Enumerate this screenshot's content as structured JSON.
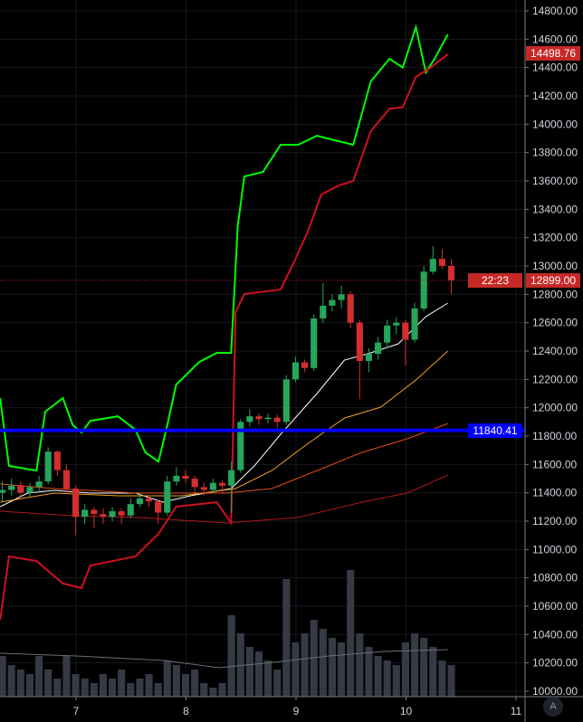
{
  "chart_data": {
    "type": "candlestick",
    "x_axis": {
      "ticks": [
        7,
        8,
        9,
        10,
        11
      ],
      "range": [
        6.31,
        11.05
      ]
    },
    "y_axis": {
      "ticks": [
        10000,
        10200,
        10400,
        10600,
        10800,
        11000,
        11200,
        11400,
        11600,
        11800,
        12000,
        12200,
        12400,
        12600,
        12800,
        13000,
        13200,
        13400,
        13600,
        13800,
        14000,
        14200,
        14400,
        14600,
        14800
      ],
      "range": [
        9950,
        14880
      ],
      "tick_labels": [
        "10000.00",
        "10200.00",
        "10400.00",
        "10600.00",
        "10800.00",
        "11000.00",
        "11200.00",
        "11400.00",
        "11600.00",
        "11800.00",
        "12000.00",
        "12200.00",
        "12400.00",
        "12600.00",
        "12800.00",
        "13000.00",
        "13200.00",
        "13400.00",
        "13600.00",
        "13800.00",
        "14000.00",
        "14200.00",
        "14400.00",
        "14600.00",
        "14800.00"
      ]
    },
    "grid": true,
    "candle_start": 6.33,
    "candle_step_days": 0.0833,
    "candles_ohlc": [
      [
        11400,
        11480,
        11340,
        11420
      ],
      [
        11420,
        11500,
        11380,
        11450
      ],
      [
        11450,
        11480,
        11360,
        11400
      ],
      [
        11400,
        11470,
        11370,
        11440
      ],
      [
        11440,
        11520,
        11400,
        11480
      ],
      [
        11480,
        11720,
        11460,
        11690
      ],
      [
        11690,
        11700,
        11520,
        11560
      ],
      [
        11560,
        11600,
        11400,
        11430
      ],
      [
        11430,
        11450,
        11100,
        11230
      ],
      [
        11230,
        11320,
        11180,
        11280
      ],
      [
        11280,
        11300,
        11150,
        11250
      ],
      [
        11250,
        11290,
        11180,
        11230
      ],
      [
        11230,
        11300,
        11200,
        11270
      ],
      [
        11270,
        11290,
        11180,
        11240
      ],
      [
        11240,
        11360,
        11220,
        11320
      ],
      [
        11320,
        11400,
        11300,
        11360
      ],
      [
        11360,
        11380,
        11300,
        11340
      ],
      [
        11340,
        11350,
        11180,
        11260
      ],
      [
        11260,
        11520,
        11240,
        11480
      ],
      [
        11480,
        11580,
        11450,
        11520
      ],
      [
        11520,
        11560,
        11470,
        11500
      ],
      [
        11500,
        11520,
        11400,
        11440
      ],
      [
        11440,
        11470,
        11380,
        11420
      ],
      [
        11420,
        11500,
        11400,
        11470
      ],
      [
        11470,
        11490,
        11400,
        11450
      ],
      [
        11450,
        11620,
        11260,
        11560
      ],
      [
        11560,
        11920,
        11540,
        11900
      ],
      [
        11900,
        11990,
        11870,
        11940
      ],
      [
        11940,
        11960,
        11880,
        11920
      ],
      [
        11920,
        11960,
        11890,
        11930
      ],
      [
        11930,
        11950,
        11860,
        11900
      ],
      [
        11900,
        12230,
        11880,
        12200
      ],
      [
        12200,
        12360,
        12180,
        12320
      ],
      [
        12320,
        12340,
        12250,
        12280
      ],
      [
        12280,
        12660,
        12260,
        12630
      ],
      [
        12630,
        12880,
        12600,
        12720
      ],
      [
        12720,
        12800,
        12680,
        12760
      ],
      [
        12760,
        12860,
        12700,
        12800
      ],
      [
        12800,
        12820,
        12560,
        12600
      ],
      [
        12600,
        12620,
        12060,
        12330
      ],
      [
        12330,
        12420,
        12250,
        12380
      ],
      [
        12380,
        12500,
        12340,
        12460
      ],
      [
        12460,
        12620,
        12420,
        12580
      ],
      [
        12580,
        12640,
        12520,
        12600
      ],
      [
        12600,
        12620,
        12300,
        12480
      ],
      [
        12480,
        12740,
        12460,
        12700
      ],
      [
        12700,
        13000,
        12680,
        12960
      ],
      [
        12960,
        13140,
        12940,
        13050
      ],
      [
        13050,
        13120,
        12980,
        13000
      ],
      [
        13000,
        13050,
        12800,
        12899
      ]
    ],
    "volume_relative": [
      45,
      35,
      30,
      25,
      45,
      30,
      20,
      45,
      25,
      20,
      15,
      25,
      20,
      30,
      15,
      20,
      25,
      15,
      40,
      35,
      25,
      30,
      15,
      10,
      15,
      90,
      70,
      55,
      50,
      40,
      30,
      130,
      60,
      70,
      85,
      75,
      65,
      60,
      140,
      70,
      55,
      45,
      40,
      35,
      60,
      70,
      65,
      55,
      40,
      35
    ],
    "volume_ma_relative": [
      [
        6.31,
        48
      ],
      [
        7.0,
        45
      ],
      [
        7.8,
        40
      ],
      [
        8.3,
        32
      ],
      [
        8.8,
        38
      ],
      [
        9.3,
        45
      ],
      [
        9.8,
        50
      ],
      [
        10.38,
        52
      ]
    ],
    "series": [
      {
        "color": "#00ff00",
        "points": [
          [
            6.31,
            12068
          ],
          [
            6.39,
            11590
          ],
          [
            6.64,
            11557
          ],
          [
            6.72,
            11972
          ],
          [
            6.88,
            12068
          ],
          [
            6.97,
            11877
          ],
          [
            7.05,
            11825
          ],
          [
            7.13,
            11908
          ],
          [
            7.38,
            11940
          ],
          [
            7.54,
            11845
          ],
          [
            7.63,
            11685
          ],
          [
            7.75,
            11620
          ],
          [
            7.83,
            11877
          ],
          [
            7.91,
            12163
          ],
          [
            8.12,
            12323
          ],
          [
            8.28,
            12387
          ],
          [
            8.41,
            12387
          ],
          [
            8.47,
            13280
          ],
          [
            8.53,
            13632
          ],
          [
            8.7,
            13664
          ],
          [
            8.86,
            13855
          ],
          [
            9.02,
            13855
          ],
          [
            9.19,
            13919
          ],
          [
            9.35,
            13887
          ],
          [
            9.52,
            13855
          ],
          [
            9.68,
            14302
          ],
          [
            9.85,
            14462
          ],
          [
            9.97,
            14400
          ],
          [
            10.09,
            14685
          ],
          [
            10.18,
            14366
          ],
          [
            10.26,
            14462
          ],
          [
            10.38,
            14634
          ]
        ]
      },
      {
        "color": "#d01020",
        "points": [
          [
            6.31,
            10504
          ],
          [
            6.39,
            10951
          ],
          [
            6.64,
            10919
          ],
          [
            6.88,
            10760
          ],
          [
            7.05,
            10728
          ],
          [
            7.13,
            10887
          ],
          [
            7.54,
            10951
          ],
          [
            7.75,
            11111
          ],
          [
            7.91,
            11302
          ],
          [
            8.28,
            11334
          ],
          [
            8.41,
            11187
          ],
          [
            8.45,
            12674
          ],
          [
            8.53,
            12802
          ],
          [
            8.86,
            12834
          ],
          [
            8.98,
            13025
          ],
          [
            9.11,
            13249
          ],
          [
            9.23,
            13504
          ],
          [
            9.39,
            13568
          ],
          [
            9.52,
            13600
          ],
          [
            9.68,
            13951
          ],
          [
            9.85,
            14110
          ],
          [
            9.97,
            14120
          ],
          [
            10.09,
            14334
          ],
          [
            10.22,
            14398
          ],
          [
            10.38,
            14494
          ]
        ]
      },
      {
        "color": "#ffffff",
        "points": [
          [
            6.31,
            11302
          ],
          [
            6.56,
            11398
          ],
          [
            6.8,
            11417
          ],
          [
            7.13,
            11398
          ],
          [
            7.54,
            11398
          ],
          [
            7.79,
            11334
          ],
          [
            8.04,
            11379
          ],
          [
            8.41,
            11430
          ],
          [
            8.62,
            11589
          ],
          [
            8.86,
            11813
          ],
          [
            9.19,
            12100
          ],
          [
            9.44,
            12336
          ],
          [
            9.68,
            12387
          ],
          [
            9.93,
            12451
          ],
          [
            10.18,
            12643
          ],
          [
            10.38,
            12738
          ]
        ]
      },
      {
        "color": "#f0a020",
        "points": [
          [
            6.31,
            11334
          ],
          [
            6.8,
            11398
          ],
          [
            7.38,
            11379
          ],
          [
            7.96,
            11379
          ],
          [
            8.45,
            11430
          ],
          [
            8.78,
            11557
          ],
          [
            9.11,
            11749
          ],
          [
            9.44,
            11927
          ],
          [
            9.77,
            12004
          ],
          [
            10.09,
            12196
          ],
          [
            10.38,
            12400
          ]
        ]
      },
      {
        "color": "#e05010",
        "points": [
          [
            6.31,
            11462
          ],
          [
            6.8,
            11430
          ],
          [
            7.54,
            11398
          ],
          [
            8.37,
            11398
          ],
          [
            8.78,
            11430
          ],
          [
            9.19,
            11557
          ],
          [
            9.6,
            11685
          ],
          [
            10.01,
            11781
          ],
          [
            10.38,
            11889
          ]
        ]
      },
      {
        "color": "#b01818",
        "points": [
          [
            6.31,
            11270
          ],
          [
            6.97,
            11238
          ],
          [
            7.54,
            11226
          ],
          [
            8.37,
            11187
          ],
          [
            9.02,
            11226
          ],
          [
            9.6,
            11334
          ],
          [
            10.01,
            11398
          ],
          [
            10.38,
            11525
          ]
        ]
      }
    ],
    "horizontal_line": {
      "value": 11840.41,
      "color": "#0000ff"
    },
    "last_price_line": {
      "value": 12899.0
    }
  },
  "labels": {
    "upper_band": {
      "text": "14498.76",
      "value": 14498.76,
      "color": "#c62828"
    },
    "last_price": {
      "text": "12899.00",
      "value": 12899.0,
      "color": "#c62828"
    },
    "countdown": {
      "text": "22:23",
      "color": "#c62828"
    },
    "hline": {
      "text": "11840.41",
      "value": 11840.41,
      "color": "#0000ff"
    }
  },
  "colors": {
    "up": "#26a65b",
    "down": "#d32f2f",
    "volume": "#363a45"
  },
  "auto_button": "A"
}
